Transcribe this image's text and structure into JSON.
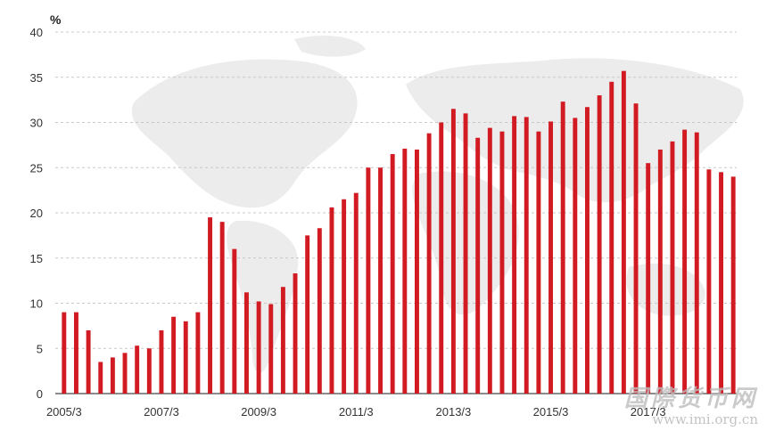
{
  "chart_data": {
    "type": "bar",
    "unit": "%",
    "ylim": [
      0,
      40
    ],
    "yticks": [
      0,
      5,
      10,
      15,
      20,
      25,
      30,
      35,
      40
    ],
    "xtick_labels": [
      "2005/3",
      "2007/3",
      "2009/3",
      "2011/3",
      "2013/3",
      "2015/3",
      "2017/3"
    ],
    "xtick_indices": [
      0,
      8,
      16,
      24,
      32,
      40,
      48
    ],
    "grid": true,
    "bar_color": "#d11a22",
    "series": [
      {
        "values": [
          9.0,
          9.0,
          7.0,
          3.5,
          4.0,
          4.5,
          5.3,
          5.0,
          7.0,
          8.5,
          8.0,
          9.0,
          19.5,
          19.0,
          16.0,
          11.2,
          10.2,
          9.9,
          11.8,
          13.3,
          17.5,
          18.3,
          20.6,
          21.5,
          22.2,
          25.0,
          25.0,
          26.5,
          27.1,
          27.0,
          28.8,
          30.0,
          31.5,
          31.0,
          28.3,
          29.4,
          29.0,
          30.7,
          30.6,
          29.0,
          30.1,
          32.3,
          30.5,
          31.7,
          33.0,
          34.5,
          35.7,
          32.1,
          25.5,
          27.0,
          27.9,
          29.2,
          28.9,
          24.8,
          24.5,
          24.0
        ]
      }
    ]
  },
  "watermark": {
    "text_cn": "国際货币网",
    "url": "www.imi.org.cn"
  }
}
